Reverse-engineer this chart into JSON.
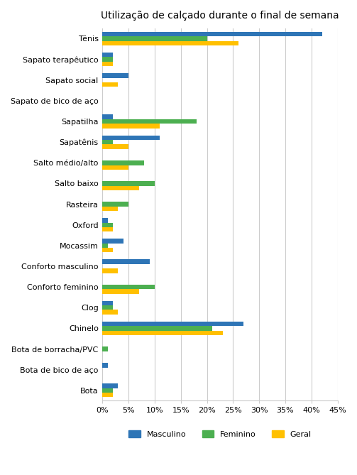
{
  "title": "Utilização de calçado durante o final de semana",
  "categories": [
    "Tênis",
    "Sapato terapêutico",
    "Sapato social",
    "Sapato de bico de aço",
    "Sapatilha",
    "Sapatênis",
    "Salto médio/alto",
    "Salto baixo",
    "Rasteira",
    "Oxford",
    "Mocassim",
    "Conforto masculino",
    "Conforto feminino",
    "Clog",
    "Chinelo",
    "Bota de borracha/PVC",
    "Bota de bico de aço",
    "Bota"
  ],
  "masculino": [
    42,
    2,
    5,
    0,
    2,
    11,
    0,
    0,
    0,
    1,
    4,
    9,
    0,
    2,
    27,
    0,
    1,
    3
  ],
  "feminino": [
    20,
    2,
    0,
    0,
    18,
    2,
    8,
    10,
    5,
    2,
    1,
    0,
    10,
    2,
    21,
    1,
    0,
    2
  ],
  "geral": [
    26,
    2,
    3,
    0,
    11,
    5,
    5,
    7,
    3,
    2,
    2,
    3,
    7,
    3,
    23,
    0,
    0,
    2
  ],
  "colors": {
    "masculino": "#2E75B6",
    "feminino": "#4CAF50",
    "geral": "#FFC000"
  },
  "xlim": [
    0,
    45
  ],
  "xticks": [
    0,
    5,
    10,
    15,
    20,
    25,
    30,
    35,
    40,
    45
  ],
  "bar_height": 0.22,
  "figsize": [
    5.03,
    6.69
  ],
  "dpi": 100,
  "legend_labels": [
    "Masculino",
    "Feminino",
    "Geral"
  ]
}
